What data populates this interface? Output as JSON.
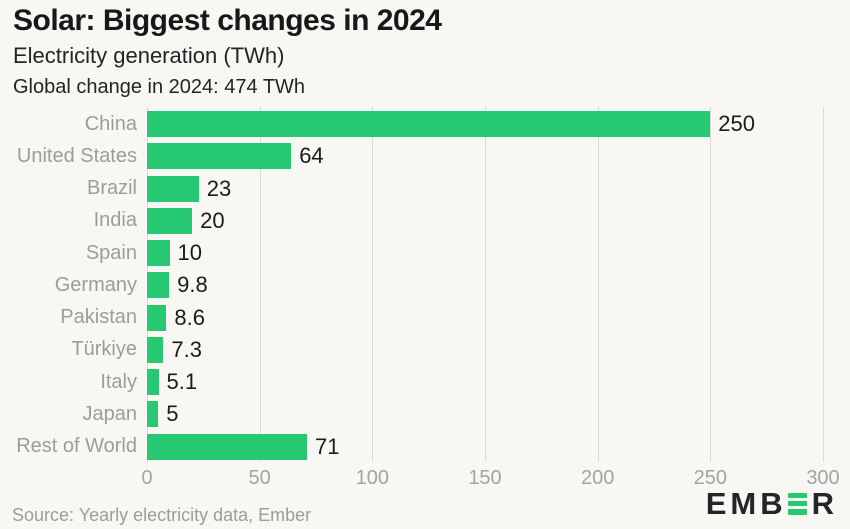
{
  "header": {
    "title": "Solar: Biggest changes in 2024",
    "subtitle": "Electricity generation (TWh)",
    "description": "Global change in 2024: 474 TWh"
  },
  "chart_data": {
    "type": "bar",
    "orientation": "horizontal",
    "title": "Solar: Biggest changes in 2024",
    "subtitle": "Electricity generation (TWh)",
    "annotation": "Global change in 2024: 474 TWh",
    "categories": [
      "China",
      "United States",
      "Brazil",
      "India",
      "Spain",
      "Germany",
      "Pakistan",
      "Türkiye",
      "Italy",
      "Japan",
      "Rest of World"
    ],
    "values": [
      250,
      64,
      23,
      20,
      10,
      9.8,
      8.6,
      7.3,
      5.1,
      5,
      71
    ],
    "value_labels": [
      "250",
      "64",
      "23",
      "20",
      "10",
      "9.8",
      "8.6",
      "7.3",
      "5.1",
      "5",
      "71"
    ],
    "x_ticks": [
      0,
      50,
      100,
      150,
      200,
      250,
      300
    ],
    "x_tick_labels": [
      "0",
      "50",
      "100",
      "150",
      "200",
      "250",
      "300"
    ],
    "xlim": [
      0,
      300
    ],
    "xlabel": "",
    "ylabel": "",
    "grid": "vertical",
    "legend": "none"
  },
  "footer": {
    "source": "Source: Yearly electricity data, Ember"
  },
  "logo": {
    "prefix": "EMB",
    "suffix": "R",
    "name": "EMBER"
  },
  "colors": {
    "background": "#f8f7f4",
    "bar": "#26c871",
    "gridline": "#d9d9d6",
    "title": "#181818",
    "subtitle": "#242424",
    "category_label": "#9c9c9a",
    "value_label": "#1b1b1b",
    "tick_label": "#a3a3a0",
    "logo_dark": "#22262b"
  }
}
